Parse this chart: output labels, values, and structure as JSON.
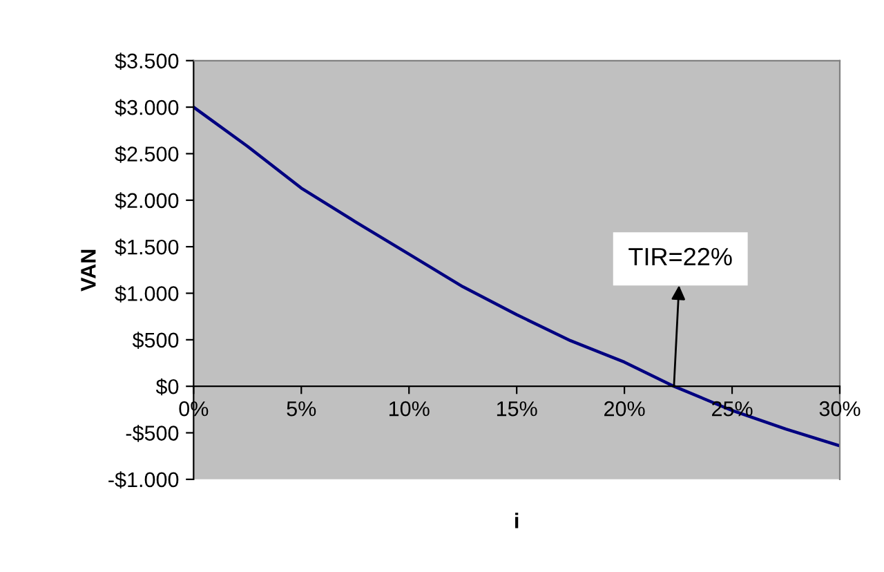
{
  "chart_data": {
    "type": "line",
    "xlabel": "i",
    "ylabel": "VAN",
    "x": [
      0,
      2.5,
      5,
      7.5,
      10,
      12.5,
      15,
      17.5,
      20,
      22.3,
      25,
      27.5,
      30
    ],
    "series": [
      {
        "color": "#000080",
        "values": [
          3000,
          2580,
          2130,
          1770,
          1420,
          1070,
          770,
          490,
          260,
          0,
          -260,
          -460,
          -640
        ]
      }
    ],
    "xlim": [
      0,
      30
    ],
    "xticks": [
      {
        "value": 0,
        "label": "0%"
      },
      {
        "value": 5,
        "label": "5%"
      },
      {
        "value": 10,
        "label": "10%"
      },
      {
        "value": 15,
        "label": "15%"
      },
      {
        "value": 20,
        "label": "20%"
      },
      {
        "value": 25,
        "label": "25%"
      },
      {
        "value": 30,
        "label": "30%"
      }
    ],
    "ylim": [
      -1000,
      3500
    ],
    "yticks": [
      {
        "value": -1000,
        "label": "-$1.000"
      },
      {
        "value": -500,
        "label": "-$500"
      },
      {
        "value": 0,
        "label": "$0"
      },
      {
        "value": 500,
        "label": "$500"
      },
      {
        "value": 1000,
        "label": "$1.000"
      },
      {
        "value": 1500,
        "label": "$1.500"
      },
      {
        "value": 2000,
        "label": "$2.000"
      },
      {
        "value": 2500,
        "label": "$2.500"
      },
      {
        "value": 3000,
        "label": "$3.000"
      },
      {
        "value": 3500,
        "label": "$3.500"
      }
    ],
    "annotations": [
      {
        "text": "TIR=22%",
        "x": 22.3,
        "y": 0
      }
    ],
    "grid": false,
    "marker": "none",
    "line_style": "solid"
  }
}
